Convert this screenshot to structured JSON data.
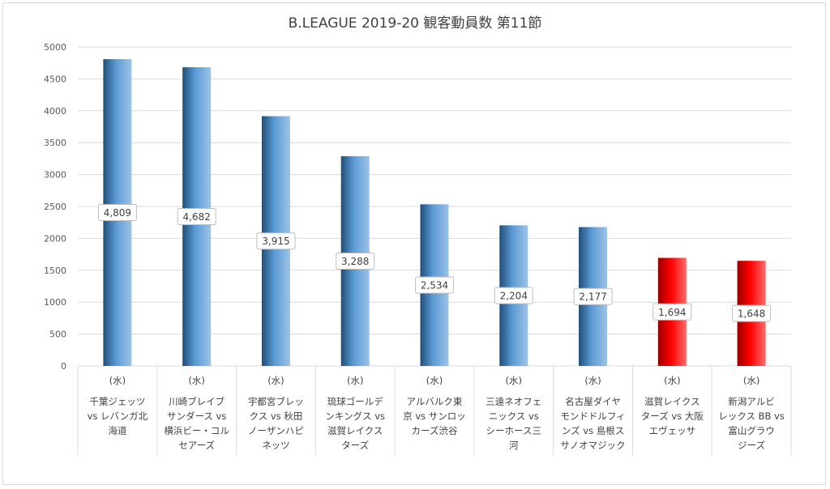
{
  "chart_data": {
    "type": "bar",
    "title": "B.LEAGUE 2019-20 観客動員数 第11節",
    "xlabel": "",
    "ylabel": "",
    "ylim": [
      0,
      5000
    ],
    "yticks": [
      0,
      500,
      1000,
      1500,
      2000,
      2500,
      3000,
      3500,
      4000,
      4500,
      5000
    ],
    "grid": true,
    "legend": "none",
    "categories": [
      [
        "(水)",
        "千葉ジェッツ",
        "vs レバンガ北",
        "海道"
      ],
      [
        "(水)",
        "川崎ブレイブ",
        "サンダース vs",
        "横浜ビー・コル",
        "セアーズ"
      ],
      [
        "(水)",
        "宇都宮ブレッ",
        "クス vs 秋田",
        "ノーザンハピ",
        "ネッツ"
      ],
      [
        "(水)",
        "琉球ゴールデ",
        "ンキングス vs",
        "滋賀レイクス",
        "ターズ"
      ],
      [
        "(水)",
        "アルバルク東",
        "京 vs サンロッ",
        "カーズ渋谷"
      ],
      [
        "(水)",
        "三遠ネオフェ",
        "ニックス vs",
        "シーホース三",
        "河"
      ],
      [
        "(水)",
        "名古屋ダイヤ",
        "モンドドルフィ",
        "ンズ vs 島根ス",
        "サノオマジック"
      ],
      [
        "(水)",
        "滋賀レイクス",
        "ターズ vs 大阪",
        "エヴェッサ"
      ],
      [
        "(水)",
        "新潟アルビ",
        "レックス BB vs",
        "富山グラウ",
        "ジーズ"
      ]
    ],
    "values": [
      4809,
      4682,
      3915,
      3288,
      2534,
      2204,
      2177,
      1694,
      1648
    ],
    "data_labels": [
      "4,809",
      "4,682",
      "3,915",
      "3,288",
      "2,534",
      "2,204",
      "2,177",
      "1,694",
      "1,648"
    ],
    "bar_colors": [
      "#5b9bd5",
      "#5b9bd5",
      "#5b9bd5",
      "#5b9bd5",
      "#5b9bd5",
      "#5b9bd5",
      "#5b9bd5",
      "#ff0000",
      "#ff0000"
    ],
    "colors": {
      "blue_bar": "#5b9bd5",
      "red_bar": "#ff0000",
      "gridline": "#d9d9d9"
    }
  }
}
